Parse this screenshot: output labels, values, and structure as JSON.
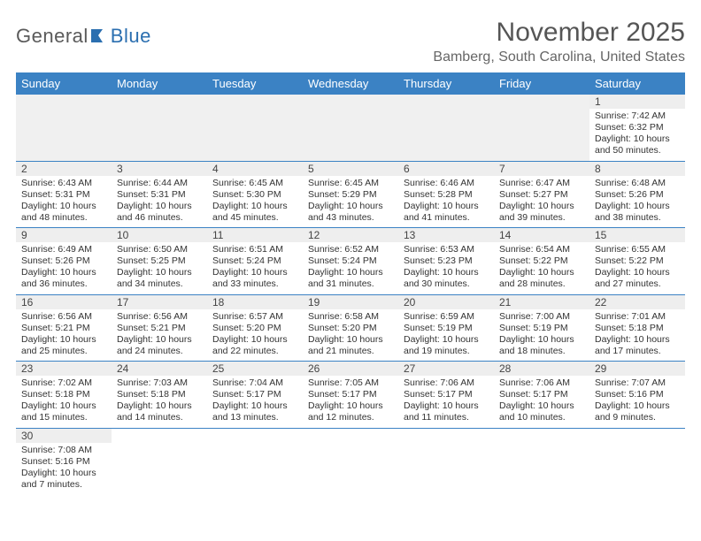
{
  "logo": {
    "text_a": "General",
    "text_b": "Blue"
  },
  "title": "November 2025",
  "location": "Bamberg, South Carolina, United States",
  "colors": {
    "header_bg": "#3b82c4",
    "header_fg": "#ffffff",
    "row_border": "#3b82c4",
    "daynum_bg": "#eeeeee",
    "empty_bg": "#f0f0f0",
    "logo_gray": "#5a5a5a",
    "logo_blue": "#2b6fb0"
  },
  "day_headers": [
    "Sunday",
    "Monday",
    "Tuesday",
    "Wednesday",
    "Thursday",
    "Friday",
    "Saturday"
  ],
  "weeks": [
    [
      null,
      null,
      null,
      null,
      null,
      null,
      {
        "n": "1",
        "sr": "7:42 AM",
        "ss": "6:32 PM",
        "dl": "10 hours and 50 minutes."
      }
    ],
    [
      {
        "n": "2",
        "sr": "6:43 AM",
        "ss": "5:31 PM",
        "dl": "10 hours and 48 minutes."
      },
      {
        "n": "3",
        "sr": "6:44 AM",
        "ss": "5:31 PM",
        "dl": "10 hours and 46 minutes."
      },
      {
        "n": "4",
        "sr": "6:45 AM",
        "ss": "5:30 PM",
        "dl": "10 hours and 45 minutes."
      },
      {
        "n": "5",
        "sr": "6:45 AM",
        "ss": "5:29 PM",
        "dl": "10 hours and 43 minutes."
      },
      {
        "n": "6",
        "sr": "6:46 AM",
        "ss": "5:28 PM",
        "dl": "10 hours and 41 minutes."
      },
      {
        "n": "7",
        "sr": "6:47 AM",
        "ss": "5:27 PM",
        "dl": "10 hours and 39 minutes."
      },
      {
        "n": "8",
        "sr": "6:48 AM",
        "ss": "5:26 PM",
        "dl": "10 hours and 38 minutes."
      }
    ],
    [
      {
        "n": "9",
        "sr": "6:49 AM",
        "ss": "5:26 PM",
        "dl": "10 hours and 36 minutes."
      },
      {
        "n": "10",
        "sr": "6:50 AM",
        "ss": "5:25 PM",
        "dl": "10 hours and 34 minutes."
      },
      {
        "n": "11",
        "sr": "6:51 AM",
        "ss": "5:24 PM",
        "dl": "10 hours and 33 minutes."
      },
      {
        "n": "12",
        "sr": "6:52 AM",
        "ss": "5:24 PM",
        "dl": "10 hours and 31 minutes."
      },
      {
        "n": "13",
        "sr": "6:53 AM",
        "ss": "5:23 PM",
        "dl": "10 hours and 30 minutes."
      },
      {
        "n": "14",
        "sr": "6:54 AM",
        "ss": "5:22 PM",
        "dl": "10 hours and 28 minutes."
      },
      {
        "n": "15",
        "sr": "6:55 AM",
        "ss": "5:22 PM",
        "dl": "10 hours and 27 minutes."
      }
    ],
    [
      {
        "n": "16",
        "sr": "6:56 AM",
        "ss": "5:21 PM",
        "dl": "10 hours and 25 minutes."
      },
      {
        "n": "17",
        "sr": "6:56 AM",
        "ss": "5:21 PM",
        "dl": "10 hours and 24 minutes."
      },
      {
        "n": "18",
        "sr": "6:57 AM",
        "ss": "5:20 PM",
        "dl": "10 hours and 22 minutes."
      },
      {
        "n": "19",
        "sr": "6:58 AM",
        "ss": "5:20 PM",
        "dl": "10 hours and 21 minutes."
      },
      {
        "n": "20",
        "sr": "6:59 AM",
        "ss": "5:19 PM",
        "dl": "10 hours and 19 minutes."
      },
      {
        "n": "21",
        "sr": "7:00 AM",
        "ss": "5:19 PM",
        "dl": "10 hours and 18 minutes."
      },
      {
        "n": "22",
        "sr": "7:01 AM",
        "ss": "5:18 PM",
        "dl": "10 hours and 17 minutes."
      }
    ],
    [
      {
        "n": "23",
        "sr": "7:02 AM",
        "ss": "5:18 PM",
        "dl": "10 hours and 15 minutes."
      },
      {
        "n": "24",
        "sr": "7:03 AM",
        "ss": "5:18 PM",
        "dl": "10 hours and 14 minutes."
      },
      {
        "n": "25",
        "sr": "7:04 AM",
        "ss": "5:17 PM",
        "dl": "10 hours and 13 minutes."
      },
      {
        "n": "26",
        "sr": "7:05 AM",
        "ss": "5:17 PM",
        "dl": "10 hours and 12 minutes."
      },
      {
        "n": "27",
        "sr": "7:06 AM",
        "ss": "5:17 PM",
        "dl": "10 hours and 11 minutes."
      },
      {
        "n": "28",
        "sr": "7:06 AM",
        "ss": "5:17 PM",
        "dl": "10 hours and 10 minutes."
      },
      {
        "n": "29",
        "sr": "7:07 AM",
        "ss": "5:16 PM",
        "dl": "10 hours and 9 minutes."
      }
    ],
    [
      {
        "n": "30",
        "sr": "7:08 AM",
        "ss": "5:16 PM",
        "dl": "10 hours and 7 minutes."
      },
      null,
      null,
      null,
      null,
      null,
      null
    ]
  ],
  "labels": {
    "sunrise": "Sunrise:",
    "sunset": "Sunset:",
    "daylight": "Daylight:"
  }
}
